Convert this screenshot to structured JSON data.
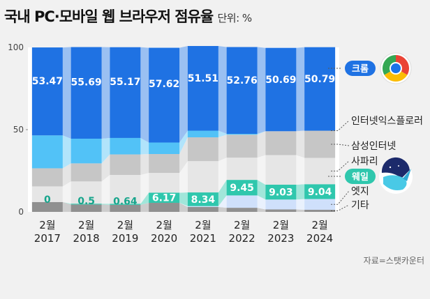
{
  "title": "국내 PC·모바일 웹 브라우저 점유율",
  "unit": "단위: %",
  "source": "자료=스탯카운터",
  "chart_data": {
    "type": "bar",
    "stacked": true,
    "title": "국내 PC·모바일 웹 브라우저 점유율",
    "unit": "%",
    "categories": [
      "2월\n2017",
      "2월\n2018",
      "2월\n2019",
      "2월\n2020",
      "2월\n2021",
      "2월\n2022",
      "2월\n2023",
      "2월\n2024"
    ],
    "ylim": [
      0,
      100
    ],
    "yticks": [
      0,
      50,
      100
    ],
    "series": [
      {
        "name": "기타",
        "color": "#909090",
        "values": [
          6.0,
          4.5,
          4.3,
          5.5,
          3.0,
          2.5,
          1.5,
          1.3
        ]
      },
      {
        "name": "엣지",
        "color": "#cfe0fb",
        "values": [
          0.0,
          0.0,
          0.0,
          0.0,
          0.5,
          7.5,
          6.0,
          6.5
        ]
      },
      {
        "name": "웨일",
        "color": "#2fc7ad",
        "values": [
          0.0,
          0.5,
          0.64,
          6.17,
          8.34,
          9.45,
          9.03,
          9.04
        ],
        "labels": [
          "0",
          "0.5",
          "0.64",
          "6.17",
          "8.34",
          "9.45",
          "9.03",
          "9.04"
        ]
      },
      {
        "name": "사파리",
        "color": "#e6e6e6",
        "values": [
          9.5,
          13.5,
          17.5,
          12.0,
          19.0,
          13.5,
          18.0,
          16.0
        ]
      },
      {
        "name": "삼성인터넷",
        "color": "#c6c6c6",
        "values": [
          11.0,
          11.0,
          12.5,
          11.5,
          14.5,
          14.0,
          14.5,
          16.5
        ]
      },
      {
        "name": "인터넷익스플로러",
        "color": "#52c2f7",
        "values": [
          20.0,
          15.0,
          10.0,
          7.0,
          4.0,
          0.5,
          0.0,
          0.0
        ]
      },
      {
        "name": "크롬",
        "color": "#1f72e3",
        "values": [
          53.47,
          55.69,
          55.17,
          57.62,
          51.51,
          52.76,
          50.69,
          50.79
        ],
        "labels": [
          "53.47",
          "55.69",
          "55.17",
          "57.62",
          "51.51",
          "52.76",
          "50.69",
          "50.79"
        ]
      }
    ],
    "legend": [
      {
        "name": "인터넷익스플로러",
        "series": "인터넷익스플로러"
      },
      {
        "name": "삼성인터넷",
        "series": "삼성인터넷"
      },
      {
        "name": "사파리",
        "series": "사파리"
      },
      {
        "name": "엣지",
        "series": "엣지"
      },
      {
        "name": "기타",
        "series": "기타"
      }
    ],
    "badges": [
      {
        "name": "크롬",
        "color": "#1f72e3",
        "series": "크롬"
      },
      {
        "name": "웨일",
        "color": "#2fc7ad",
        "series": "웨일"
      }
    ]
  }
}
